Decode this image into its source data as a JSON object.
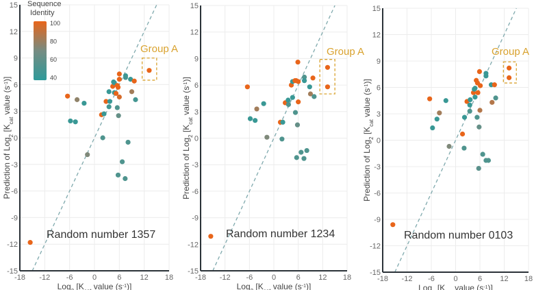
{
  "chart_data": {
    "type": "scatter",
    "colors": {
      "high": "#E8651A",
      "low": "#2E9A99",
      "group_box": "#D9A22E",
      "axis": "#2b3238",
      "diagonal": "#7fa9ad",
      "grid": "#ececec",
      "tick": "#666666"
    },
    "xlim": [
      -18,
      18
    ],
    "ylim": [
      -15,
      15
    ],
    "xticks": [
      "-18",
      "-12",
      "-6",
      "0",
      "6",
      "12",
      "18"
    ],
    "yticks": [
      "15",
      "12",
      "9",
      "6",
      "3",
      "0",
      "-3",
      "-6",
      "-9",
      "-12",
      "-15"
    ],
    "xlabel": [
      "Log",
      "2",
      " [K",
      "cat",
      " value (s",
      "-1",
      ")]"
    ],
    "ylabel": [
      "Prediction of Log",
      "2",
      " [K",
      "cat",
      " value (s",
      "-1",
      ")]"
    ],
    "colorbar": {
      "title_line1": "Sequence",
      "title_line2": "Identity",
      "ticks": [
        "100",
        "80",
        "60",
        "40"
      ],
      "range": [
        35,
        100
      ]
    },
    "group_label": "Group A",
    "panels": [
      {
        "title": "Random number 1357",
        "group_box": {
          "x": [
            11.5,
            15
          ],
          "y": [
            6.5,
            9
          ]
        },
        "points": [
          [
            -15.5,
            -11.8,
            100
          ],
          [
            -6.5,
            4.7,
            100
          ],
          [
            -4.2,
            4.3,
            75
          ],
          [
            -2.5,
            3.9,
            40
          ],
          [
            -5.8,
            1.9,
            40
          ],
          [
            -4.6,
            1.8,
            40
          ],
          [
            -1.7,
            -1.9,
            70
          ],
          [
            1.7,
            2.6,
            100
          ],
          [
            2.3,
            2.7,
            40
          ],
          [
            2,
            0,
            50
          ],
          [
            2.8,
            4.1,
            100
          ],
          [
            3.5,
            5.2,
            40
          ],
          [
            3.5,
            3.5,
            45
          ],
          [
            3.7,
            4.1,
            40
          ],
          [
            4.4,
            5.8,
            100
          ],
          [
            4.6,
            6.3,
            40
          ],
          [
            4.8,
            6.2,
            40
          ],
          [
            4.8,
            5.1,
            40
          ],
          [
            5.2,
            5.0,
            100
          ],
          [
            5.5,
            5.9,
            100
          ],
          [
            5.5,
            3.4,
            50
          ],
          [
            5.7,
            5.7,
            100
          ],
          [
            5.8,
            2.5,
            60
          ],
          [
            6,
            7.2,
            100
          ],
          [
            6,
            6.6,
            100
          ],
          [
            6,
            4.6,
            95
          ],
          [
            7.5,
            7.0,
            40
          ],
          [
            7.5,
            6.8,
            45
          ],
          [
            8.1,
            -0.5,
            50
          ],
          [
            8.7,
            6.6,
            40
          ],
          [
            9.0,
            5.2,
            80
          ],
          [
            9.6,
            6.4,
            100
          ],
          [
            9.9,
            4.3,
            45
          ],
          [
            6.7,
            -2.7,
            50
          ],
          [
            5.7,
            -4.2,
            50
          ],
          [
            7.4,
            -4.6,
            50
          ],
          [
            13.2,
            7.6,
            100
          ]
        ]
      },
      {
        "title": "Random number 1234",
        "group_box": {
          "x": [
            11.3,
            15
          ],
          "y": [
            5,
            8.9
          ]
        },
        "points": [
          [
            -15.5,
            -11.1,
            100
          ],
          [
            -6.5,
            5.8,
            100
          ],
          [
            -4.2,
            3.3,
            80
          ],
          [
            -2.5,
            3.9,
            40
          ],
          [
            -5.8,
            2.2,
            40
          ],
          [
            -4.6,
            2.0,
            40
          ],
          [
            -1.7,
            0.1,
            70
          ],
          [
            1.6,
            1.8,
            100
          ],
          [
            2.2,
            1.8,
            40
          ],
          [
            2,
            -0.1,
            50
          ],
          [
            2.8,
            4.0,
            100
          ],
          [
            3.5,
            4.3,
            40
          ],
          [
            3.6,
            3.8,
            50
          ],
          [
            4.3,
            6.0,
            100
          ],
          [
            4.6,
            6.4,
            40
          ],
          [
            4.6,
            4.6,
            40
          ],
          [
            5.2,
            6.5,
            100
          ],
          [
            5.5,
            6.5,
            100
          ],
          [
            5.3,
            2.9,
            50
          ],
          [
            5.9,
            8.6,
            100
          ],
          [
            6,
            6.4,
            100
          ],
          [
            6,
            4.1,
            100
          ],
          [
            5.8,
            1.5,
            60
          ],
          [
            7.5,
            6.9,
            50
          ],
          [
            7.5,
            6.5,
            40
          ],
          [
            8.8,
            5.8,
            40
          ],
          [
            9.0,
            5.0,
            80
          ],
          [
            9.6,
            6.8,
            100
          ],
          [
            9.9,
            4.7,
            50
          ],
          [
            5.6,
            -2.2,
            50
          ],
          [
            6.7,
            -1.6,
            50
          ],
          [
            7.4,
            -2.3,
            50
          ],
          [
            8.1,
            -1.4,
            50
          ],
          [
            13.2,
            8.0,
            100
          ],
          [
            13.2,
            5.8,
            100
          ]
        ]
      },
      {
        "title": "Random number 0103",
        "group_box": {
          "x": [
            11.8,
            15
          ],
          "y": [
            6.5,
            8.9
          ]
        },
        "points": [
          [
            -15.5,
            -9.6,
            100
          ],
          [
            -6.4,
            4.7,
            100
          ],
          [
            -4.0,
            3.1,
            80
          ],
          [
            -2.4,
            4.5,
            40
          ],
          [
            -5.7,
            1.4,
            40
          ],
          [
            -4.6,
            2.4,
            40
          ],
          [
            -1.6,
            -0.7,
            70
          ],
          [
            1.7,
            0.7,
            100
          ],
          [
            2.2,
            2.6,
            40
          ],
          [
            2.1,
            -0.9,
            50
          ],
          [
            2.8,
            4.4,
            100
          ],
          [
            3.6,
            4.6,
            40
          ],
          [
            3.5,
            4.0,
            40
          ],
          [
            3.5,
            3.3,
            50
          ],
          [
            4.4,
            5.4,
            100
          ],
          [
            4.6,
            5.8,
            40
          ],
          [
            4.8,
            5.9,
            40
          ],
          [
            4.8,
            4.9,
            40
          ],
          [
            5.1,
            6.8,
            100
          ],
          [
            5.4,
            6.5,
            100
          ],
          [
            5.5,
            5.4,
            100
          ],
          [
            5.3,
            2.6,
            50
          ],
          [
            5.9,
            7.8,
            100
          ],
          [
            6.1,
            6.2,
            100
          ],
          [
            6.0,
            3.4,
            85
          ],
          [
            5.8,
            1.5,
            60
          ],
          [
            7.5,
            7.6,
            40
          ],
          [
            7.5,
            7.3,
            40
          ],
          [
            8.8,
            6.3,
            40
          ],
          [
            9.0,
            4.3,
            85
          ],
          [
            9.6,
            6.3,
            100
          ],
          [
            9.9,
            4.8,
            50
          ],
          [
            6.7,
            -1.6,
            50
          ],
          [
            5.7,
            -3.2,
            55
          ],
          [
            7.5,
            -2.3,
            50
          ],
          [
            8.1,
            -2.3,
            50
          ],
          [
            13.2,
            8.2,
            100
          ],
          [
            13.2,
            7.1,
            100
          ]
        ]
      }
    ]
  }
}
